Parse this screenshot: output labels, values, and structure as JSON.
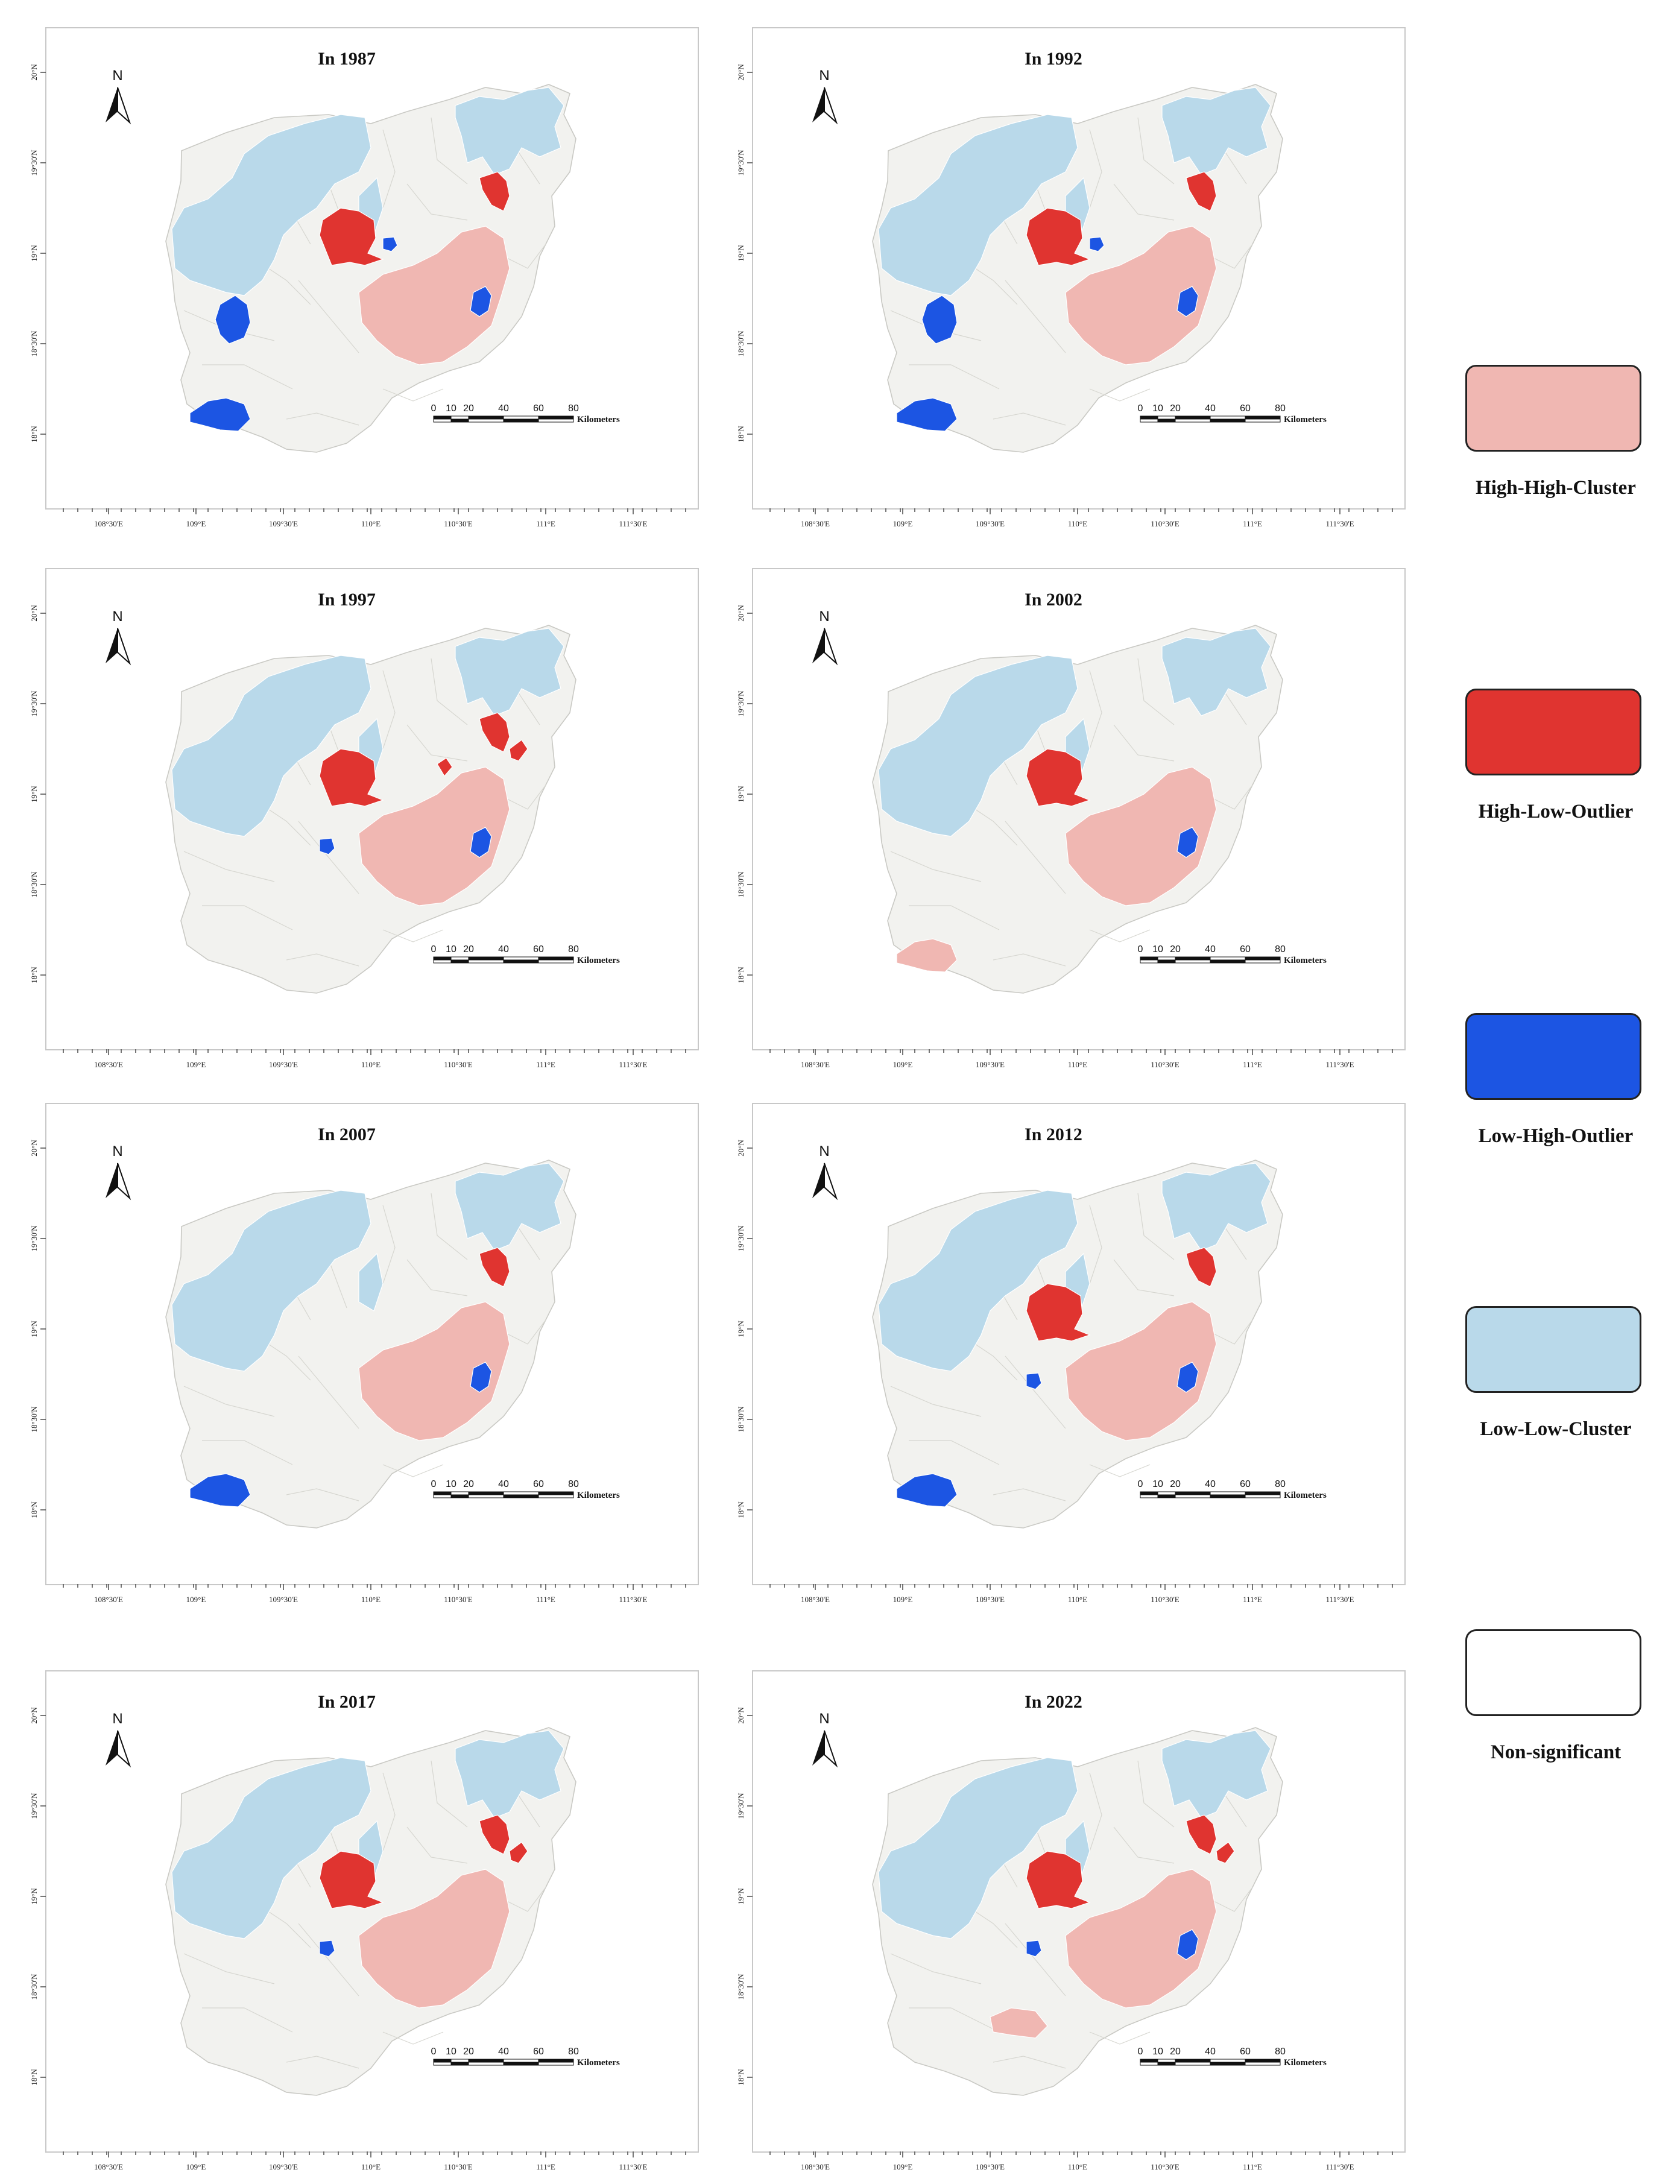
{
  "colors": {
    "high_high": "#f0b7b2",
    "high_low": "#e03430",
    "low_high": "#1c55e3",
    "low_low": "#b9d9ea",
    "not_significant": "#f2f2ef"
  },
  "axis": {
    "lon_labels": [
      "108°30'E",
      "109°E",
      "109°30'E",
      "110°E",
      "110°30'E",
      "111°E",
      "111°30'E"
    ],
    "lat_labels": [
      "20°N",
      "19°30'N",
      "19°N",
      "18°30'N",
      "18°N"
    ]
  },
  "north_arrow": {
    "label": "N",
    "icon": "north-arrow-icon"
  },
  "scale_bar": {
    "ticks": [
      "0",
      "10",
      "20",
      "40",
      "60",
      "80"
    ],
    "unit": "Kilometers"
  },
  "maps": [
    {
      "title": "In 1987",
      "regions": {
        "high_high": [
          "central-east"
        ],
        "high_low": [
          "central-west",
          "northeast"
        ],
        "low_high": [
          "central-near",
          "east-coast",
          "west-inland",
          "south-coast"
        ],
        "low_low": [
          "northwest",
          "north-center",
          "northeast-top"
        ]
      }
    },
    {
      "title": "In 1992",
      "regions": {
        "high_high": [
          "central-east"
        ],
        "high_low": [
          "central-west",
          "northeast"
        ],
        "low_high": [
          "central-near",
          "east-coast",
          "west-inland",
          "south-coast"
        ],
        "low_low": [
          "northwest",
          "north-center",
          "northeast-top"
        ]
      }
    },
    {
      "title": "In 1997",
      "regions": {
        "high_high": [
          "central-east"
        ],
        "high_low": [
          "central-west",
          "northeast",
          "north-small",
          "north-east-small"
        ],
        "low_high": [
          "central-south",
          "east-coast"
        ],
        "low_low": [
          "northwest",
          "north-center",
          "northeast-top"
        ]
      }
    },
    {
      "title": "In 2002",
      "regions": {
        "high_high": [
          "central-east",
          "south-coast"
        ],
        "high_low": [
          "central-west"
        ],
        "low_high": [
          "east-coast"
        ],
        "low_low": [
          "northwest",
          "north-center",
          "northeast-top"
        ]
      }
    },
    {
      "title": "In 2007",
      "regions": {
        "high_high": [
          "central-east"
        ],
        "high_low": [
          "northeast"
        ],
        "low_high": [
          "east-coast",
          "south-coast"
        ],
        "low_low": [
          "northwest",
          "north-center",
          "northeast-top"
        ]
      }
    },
    {
      "title": "In 2012",
      "regions": {
        "high_high": [
          "central-east"
        ],
        "high_low": [
          "central-west",
          "northeast"
        ],
        "low_high": [
          "central-south",
          "east-coast",
          "south-coast"
        ],
        "low_low": [
          "northwest",
          "north-center",
          "northeast-top"
        ]
      }
    },
    {
      "title": "In 2017",
      "regions": {
        "high_high": [
          "central-east"
        ],
        "high_low": [
          "central-west",
          "northeast",
          "north-east-small"
        ],
        "low_high": [
          "central-south"
        ],
        "low_low": [
          "northwest",
          "north-center",
          "northeast-top"
        ]
      }
    },
    {
      "title": "In 2022",
      "regions": {
        "high_high": [
          "central-east",
          "south-west-lobe"
        ],
        "high_low": [
          "central-west",
          "northeast",
          "north-east-small"
        ],
        "low_high": [
          "central-south",
          "east-coast"
        ],
        "low_low": [
          "northwest",
          "north-center",
          "northeast-top"
        ]
      }
    }
  ],
  "legend": [
    {
      "key": "high_high",
      "label": "High-High-Cluster"
    },
    {
      "key": "high_low",
      "label": "High-Low-Outlier"
    },
    {
      "key": "low_high",
      "label": "Low-High-Outlier"
    },
    {
      "key": "low_low",
      "label": "Low-Low-Cluster"
    },
    {
      "key": "not_significant",
      "label": "Non-significant"
    }
  ]
}
